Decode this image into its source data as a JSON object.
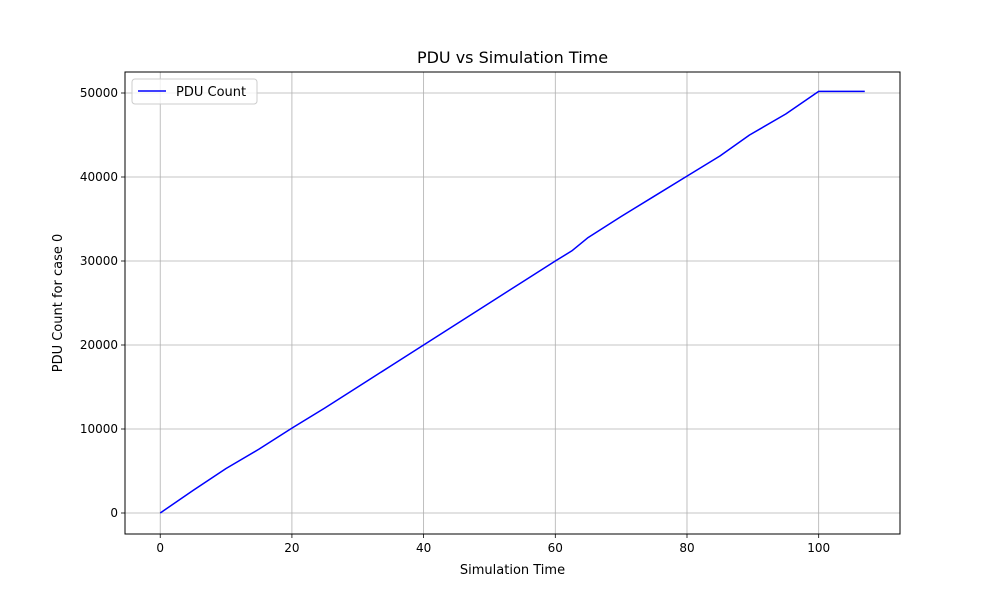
{
  "chart_data": {
    "type": "line",
    "title": "PDU vs Simulation Time",
    "xlabel": "Simulation Time",
    "ylabel": "PDU Count for case 0",
    "xlim": [
      -5.35,
      112.35
    ],
    "ylim": [
      -2500,
      52500
    ],
    "xticks": [
      0,
      20,
      40,
      60,
      80,
      100
    ],
    "yticks": [
      0,
      10000,
      20000,
      30000,
      40000,
      50000
    ],
    "grid": true,
    "legend_position": "upper-left",
    "series": [
      {
        "name": "PDU Count",
        "color": "#0000ff",
        "x": [
          0,
          5,
          10,
          15,
          20,
          25,
          30,
          35,
          40,
          45,
          50,
          55,
          60,
          62.5,
          65,
          70,
          75,
          80,
          85,
          89.5,
          95,
          100,
          107
        ],
        "y": [
          0,
          2700,
          5300,
          7600,
          10100,
          12500,
          15000,
          17500,
          20000,
          22500,
          25000,
          27500,
          30000,
          31200,
          32800,
          35300,
          37700,
          40100,
          42500,
          45000,
          47500,
          50200,
          50200
        ]
      }
    ]
  }
}
